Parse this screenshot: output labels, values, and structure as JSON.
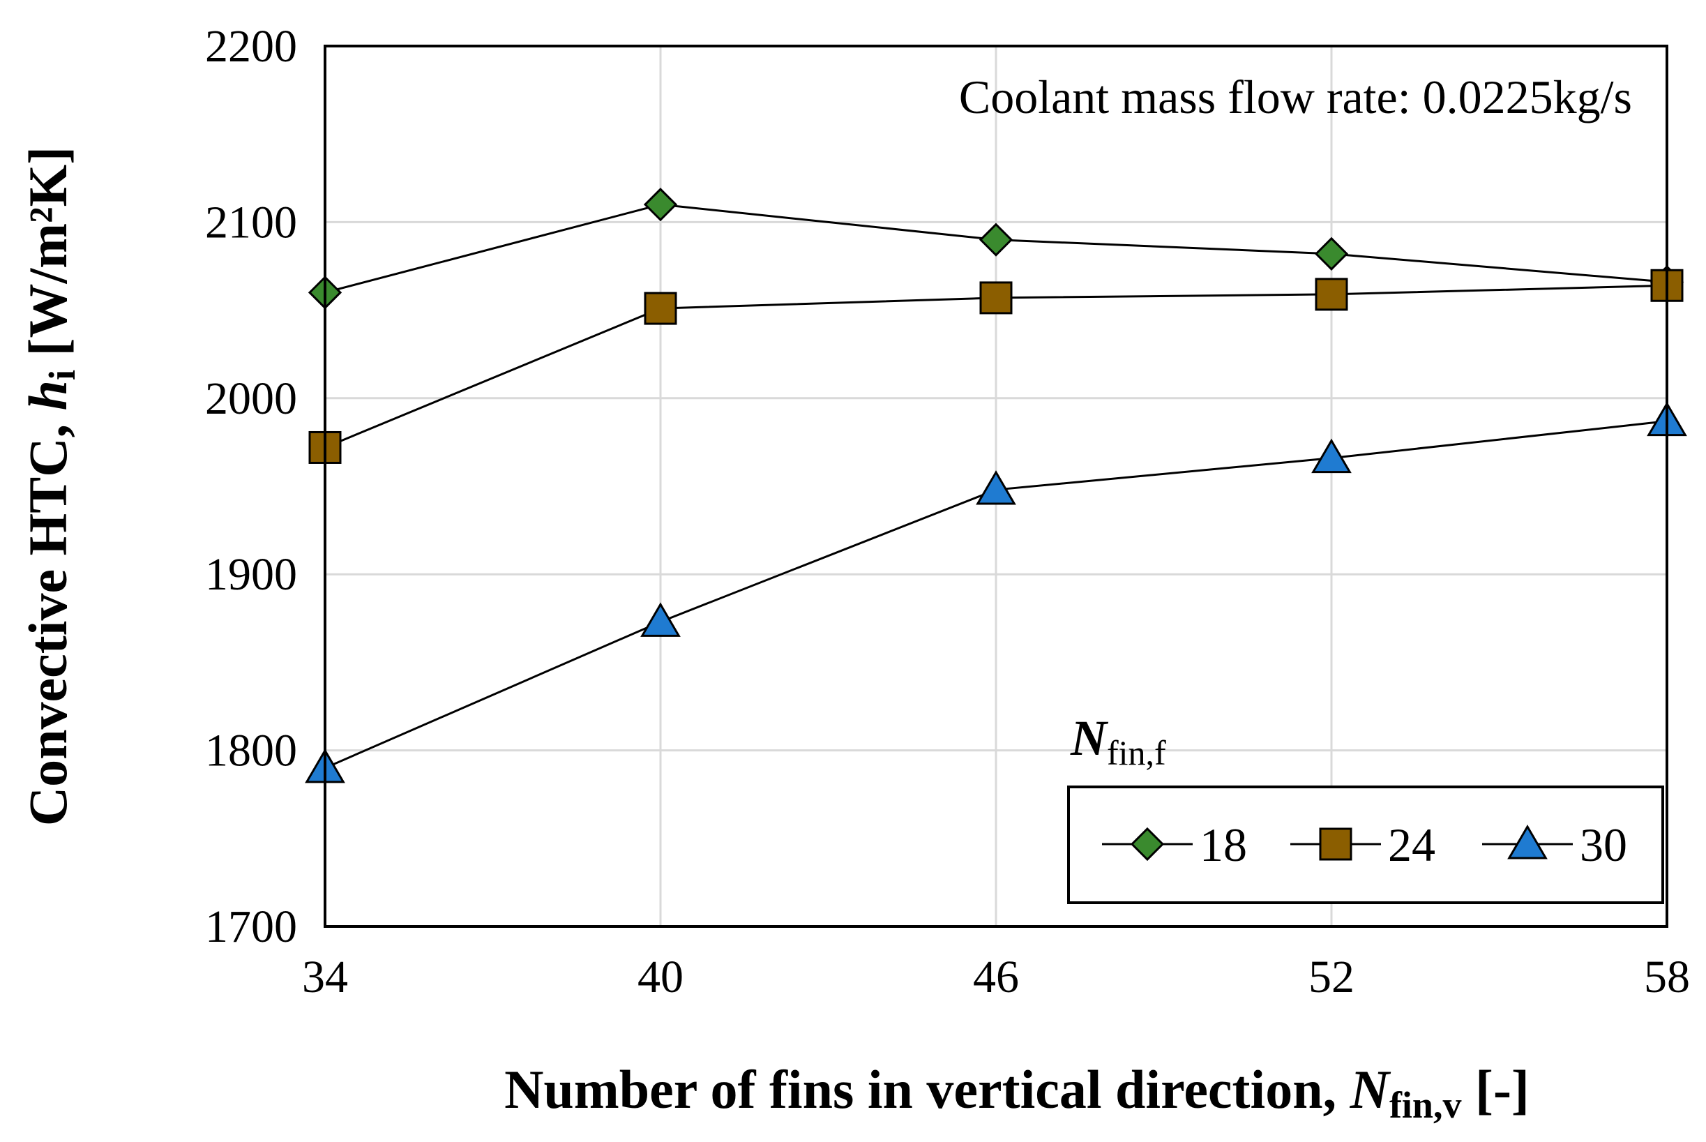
{
  "chart_data": {
    "type": "line",
    "title": "",
    "annotation": "Coolant mass flow rate: 0.0225kg/s",
    "xlabel": {
      "main": "Number of fins in vertical direction, ",
      "var": "N",
      "sub": "fin,v",
      "unit": " [-]"
    },
    "ylabel": {
      "main": "Convective HTC, ",
      "var": "h",
      "sub": "i",
      "unit": " [W/m²K]"
    },
    "x": [
      34,
      40,
      46,
      52,
      58
    ],
    "xticks": [
      "34",
      "40",
      "46",
      "52",
      "58"
    ],
    "xlim": [
      34,
      58
    ],
    "ylim": [
      1700,
      2200
    ],
    "yticks": [
      "1700",
      "1800",
      "1900",
      "2000",
      "2100",
      "2200"
    ],
    "grid": true,
    "legend": {
      "title_var": "N",
      "title_sub": "fin,f",
      "placement": "bottom-right"
    },
    "series": [
      {
        "name": "18",
        "marker": "diamond",
        "color": "#3a8a2e",
        "values": [
          2060,
          2110,
          2090,
          2082,
          2066
        ]
      },
      {
        "name": "24",
        "marker": "square",
        "color": "#8b5e00",
        "values": [
          1972,
          2051,
          2057,
          2059,
          2064
        ]
      },
      {
        "name": "30",
        "marker": "triangle",
        "color": "#1f7bd1",
        "values": [
          1790,
          1873,
          1948,
          1966,
          1987
        ]
      }
    ]
  }
}
